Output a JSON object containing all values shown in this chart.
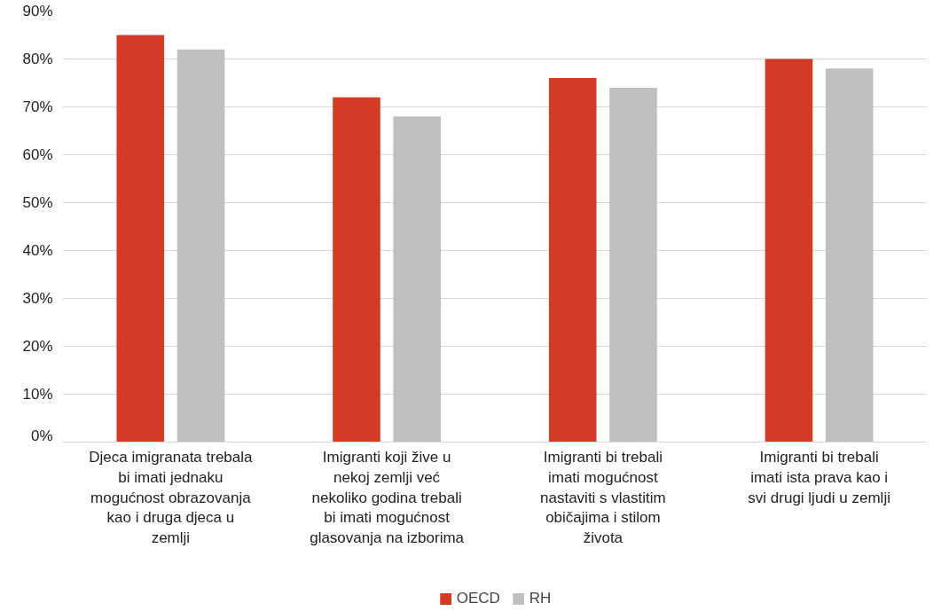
{
  "chart_data": {
    "type": "bar",
    "categories": [
      "Djeca imigranata trebala bi imati jednaku mogućnost obrazovanja kao i druga djeca u zemlji",
      "Imigranti koji žive u nekoj zemlji već nekoliko godina trebali bi imati mogućnost glasovanja na izborima",
      "Imigranti bi trebali imati mogućnost nastaviti s vlastitim običajima i stilom života",
      "Imigranti bi trebali imati ista prava kao i svi drugi ljudi u zemlji"
    ],
    "series": [
      {
        "name": "OECD",
        "color": "#d33b27",
        "values": [
          85,
          72,
          76,
          80
        ]
      },
      {
        "name": "RH",
        "color": "#bfbfbf",
        "values": [
          82,
          68,
          74,
          78
        ]
      }
    ],
    "ylim": [
      0,
      90
    ],
    "yticks": [
      {
        "value": 0,
        "label": "0%"
      },
      {
        "value": 10,
        "label": "10%"
      },
      {
        "value": 20,
        "label": "20%"
      },
      {
        "value": 30,
        "label": "30%"
      },
      {
        "value": 40,
        "label": "40%"
      },
      {
        "value": 50,
        "label": "50%"
      },
      {
        "value": 60,
        "label": "60%"
      },
      {
        "value": 70,
        "label": "70%"
      },
      {
        "value": 80,
        "label": "80%"
      },
      {
        "value": 90,
        "label": "90%"
      }
    ],
    "grid": "y",
    "legend": "bottom"
  }
}
